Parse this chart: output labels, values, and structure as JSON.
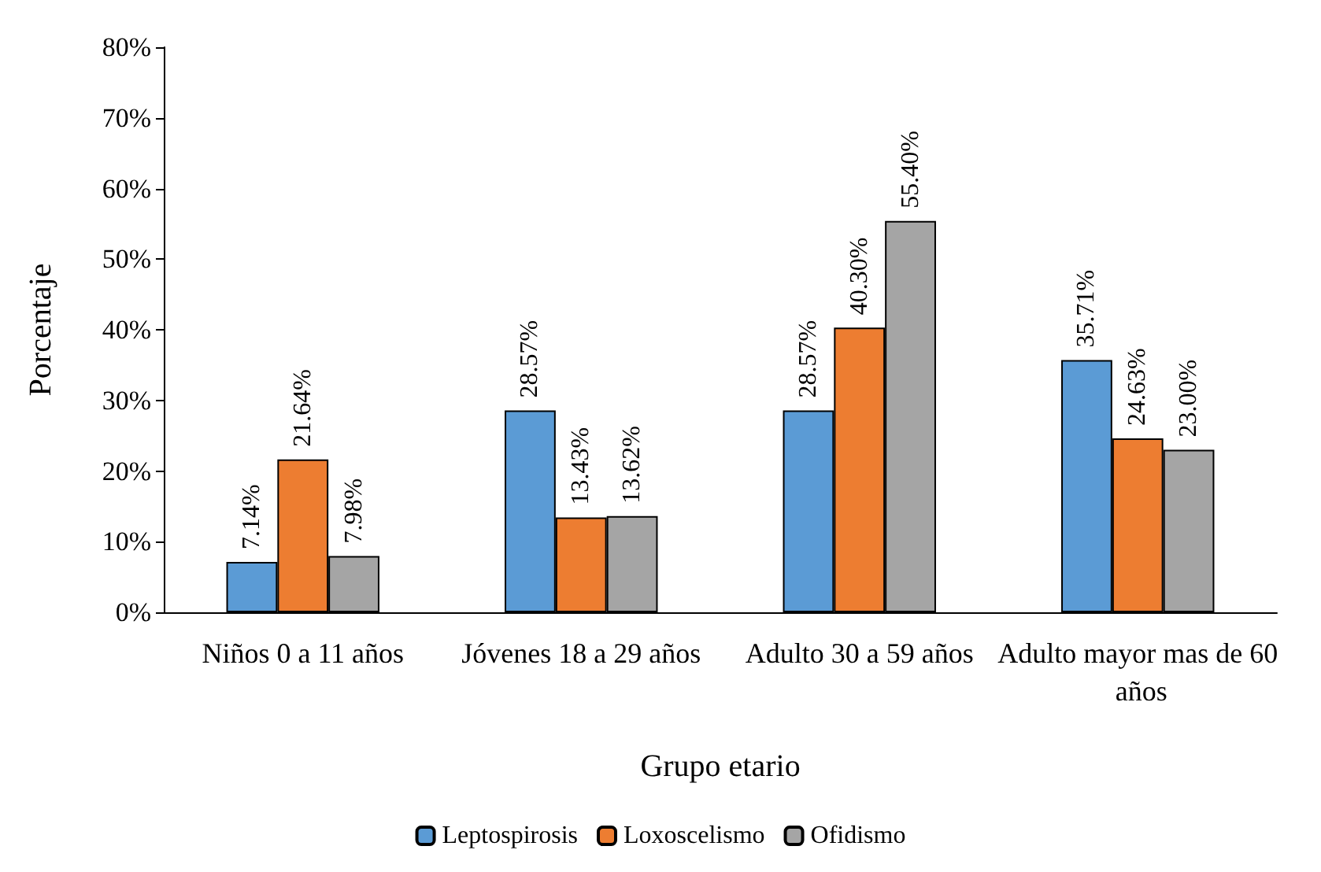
{
  "chart_data": {
    "type": "bar",
    "xlabel": "Grupo etario",
    "ylabel": "Porcentaje",
    "categories": [
      "Niños 0 a 11 años",
      "Jóvenes 18 a 29 años",
      "Adulto 30 a 59 años",
      "Adulto mayor mas de 60 años"
    ],
    "series": [
      {
        "name": "Leptospirosis",
        "color": "#5b9bd5",
        "values": [
          7.14,
          28.57,
          28.57,
          35.71
        ],
        "value_labels": [
          "7.14%",
          "28.57%",
          "28.57%",
          "35.71%"
        ]
      },
      {
        "name": "Loxoscelismo",
        "color": "#ed7d31",
        "values": [
          21.64,
          13.43,
          40.3,
          24.63
        ],
        "value_labels": [
          "21.64%",
          "13.43%",
          "40.30%",
          "24.63%"
        ]
      },
      {
        "name": "Ofidismo",
        "color": "#a5a5a5",
        "values": [
          7.98,
          13.62,
          55.4,
          23.0
        ],
        "value_labels": [
          "7.98%",
          "13.62%",
          "55.40%",
          "23.00%"
        ]
      }
    ],
    "ylim": [
      0,
      80
    ],
    "yticks": [
      {
        "value": 0,
        "label": "0%"
      },
      {
        "value": 10,
        "label": "10%"
      },
      {
        "value": 20,
        "label": "20%"
      },
      {
        "value": 30,
        "label": "30%"
      },
      {
        "value": 40,
        "label": "40%"
      },
      {
        "value": 50,
        "label": "50%"
      },
      {
        "value": 60,
        "label": "60%"
      },
      {
        "value": 70,
        "label": "70%"
      },
      {
        "value": 80,
        "label": "80%"
      }
    ],
    "grid": false,
    "legend": "bottom"
  }
}
